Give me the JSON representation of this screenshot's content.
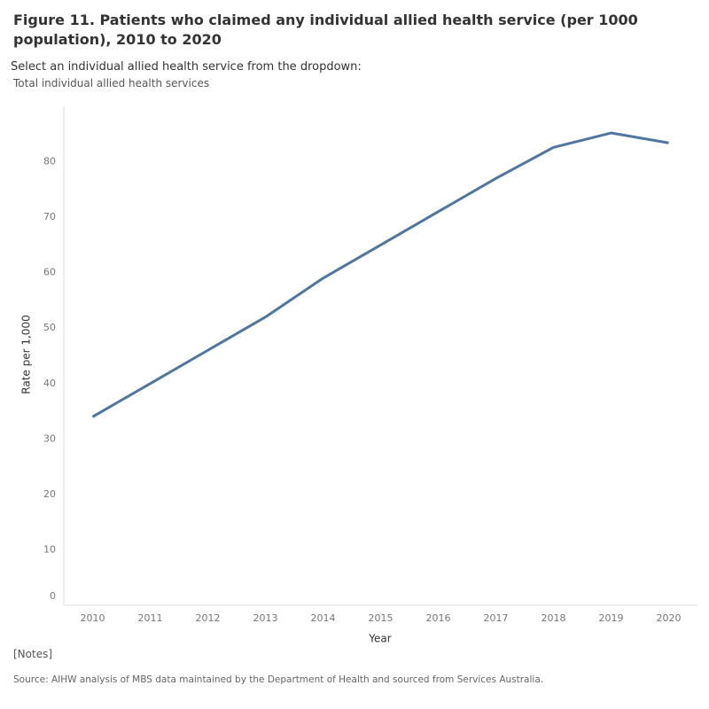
{
  "title": "Figure 11. Patients who claimed any individual allied health service (per 1000 population), 2010 to 2020",
  "filter": {
    "label": "Select an individual allied health service from the dropdown:",
    "value": "Total individual allied health services"
  },
  "notes": "[Notes]",
  "source": "Source: AIHW analysis of MBS data maintained by the Department of Health and sourced from Services Australia.",
  "chart_data": {
    "type": "line",
    "x_label": "Year",
    "y_label": "Rate per 1,000",
    "x": [
      2010,
      2011,
      2012,
      2013,
      2014,
      2015,
      2016,
      2017,
      2018,
      2019,
      2020
    ],
    "values": [
      34,
      40,
      46,
      52,
      59,
      65,
      71,
      77,
      82.6,
      85.2,
      83.4
    ],
    "color": "#4e76a3",
    "xlim": [
      2009.5,
      2020.5
    ],
    "xticks": [
      2010,
      2011,
      2012,
      2013,
      2014,
      2015,
      2016,
      2017,
      2018,
      2019,
      2020
    ],
    "ylim": [
      0,
      90
    ],
    "yticks": [
      0,
      10,
      20,
      30,
      40,
      50,
      60,
      70,
      80
    ],
    "grid": false
  }
}
